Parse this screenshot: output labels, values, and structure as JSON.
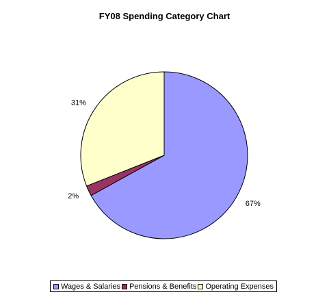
{
  "chart_data": {
    "type": "pie",
    "title": "FY08 Spending Category Chart",
    "slices": [
      {
        "name": "Wages & Salaries",
        "value": 67,
        "label": "67%",
        "color": "#9999ff"
      },
      {
        "name": "Pensions & Benefits",
        "value": 2,
        "label": "2%",
        "color": "#993366"
      },
      {
        "name": "Operating Expenses",
        "value": 31,
        "label": "31%",
        "color": "#ffffcc"
      }
    ],
    "legend_position": "bottom"
  }
}
